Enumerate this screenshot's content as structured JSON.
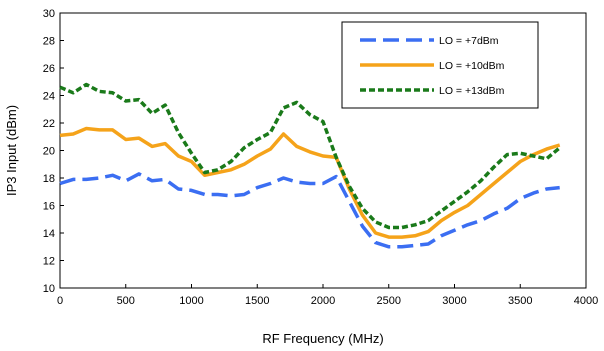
{
  "chart_data": {
    "type": "line",
    "title": "",
    "xlabel": "RF Frequency (MHz)",
    "ylabel": "IP3 Input (dBm)",
    "xlim": [
      0,
      4000
    ],
    "ylim": [
      10,
      30
    ],
    "xticks": [
      0,
      500,
      1000,
      1500,
      2000,
      2500,
      3000,
      3500,
      4000
    ],
    "yticks": [
      10,
      12,
      14,
      16,
      18,
      20,
      22,
      24,
      26,
      28,
      30
    ],
    "grid": false,
    "legend_position": "top-right",
    "series": [
      {
        "name": "LO = +7dBm",
        "color": "#3b6ef2",
        "dash": "long-dash",
        "x": [
          0,
          100,
          200,
          300,
          400,
          500,
          600,
          700,
          800,
          900,
          1000,
          1100,
          1200,
          1300,
          1400,
          1500,
          1600,
          1700,
          1800,
          1900,
          2000,
          2100,
          2200,
          2300,
          2400,
          2500,
          2600,
          2700,
          2800,
          2900,
          3000,
          3100,
          3200,
          3300,
          3400,
          3500,
          3600,
          3700,
          3800
        ],
        "y": [
          17.6,
          17.9,
          17.9,
          18.0,
          18.2,
          17.8,
          18.3,
          17.8,
          17.9,
          17.2,
          17.1,
          16.8,
          16.8,
          16.7,
          16.8,
          17.3,
          17.6,
          18.0,
          17.7,
          17.6,
          17.6,
          18.1,
          16.3,
          14.5,
          13.3,
          13.0,
          13.0,
          13.1,
          13.2,
          13.8,
          14.2,
          14.6,
          14.9,
          15.4,
          15.8,
          16.5,
          16.9,
          17.2,
          17.3
        ]
      },
      {
        "name": "LO = +10dBm",
        "color": "#f5a31a",
        "dash": "solid",
        "x": [
          0,
          100,
          200,
          300,
          400,
          500,
          600,
          700,
          800,
          900,
          1000,
          1100,
          1200,
          1300,
          1400,
          1500,
          1600,
          1700,
          1800,
          1900,
          2000,
          2100,
          2200,
          2300,
          2400,
          2500,
          2600,
          2700,
          2800,
          2900,
          3000,
          3100,
          3200,
          3300,
          3400,
          3500,
          3600,
          3700,
          3800
        ],
        "y": [
          21.1,
          21.2,
          21.6,
          21.5,
          21.5,
          20.8,
          20.9,
          20.3,
          20.5,
          19.6,
          19.2,
          18.2,
          18.4,
          18.6,
          19.0,
          19.6,
          20.1,
          21.2,
          20.3,
          19.9,
          19.6,
          19.5,
          17.2,
          15.3,
          14.0,
          13.7,
          13.7,
          13.8,
          14.1,
          14.9,
          15.5,
          16.0,
          16.8,
          17.6,
          18.4,
          19.2,
          19.7,
          20.1,
          20.4
        ]
      },
      {
        "name": "LO = +13dBm",
        "color": "#1a7a1a",
        "dash": "short-dash",
        "x": [
          0,
          100,
          200,
          300,
          400,
          500,
          600,
          700,
          800,
          900,
          1000,
          1100,
          1200,
          1300,
          1400,
          1500,
          1600,
          1700,
          1800,
          1900,
          2000,
          2100,
          2200,
          2300,
          2400,
          2500,
          2600,
          2700,
          2800,
          2900,
          3000,
          3100,
          3200,
          3300,
          3400,
          3500,
          3600,
          3700,
          3800
        ],
        "y": [
          24.6,
          24.2,
          24.8,
          24.3,
          24.2,
          23.6,
          23.7,
          22.7,
          23.3,
          21.3,
          19.8,
          18.4,
          18.6,
          19.2,
          20.2,
          20.8,
          21.3,
          23.1,
          23.5,
          22.6,
          22.1,
          19.5,
          17.4,
          15.8,
          14.8,
          14.4,
          14.4,
          14.6,
          14.9,
          15.6,
          16.3,
          17.0,
          17.8,
          18.8,
          19.7,
          19.8,
          19.6,
          19.4,
          20.2
        ]
      }
    ]
  }
}
